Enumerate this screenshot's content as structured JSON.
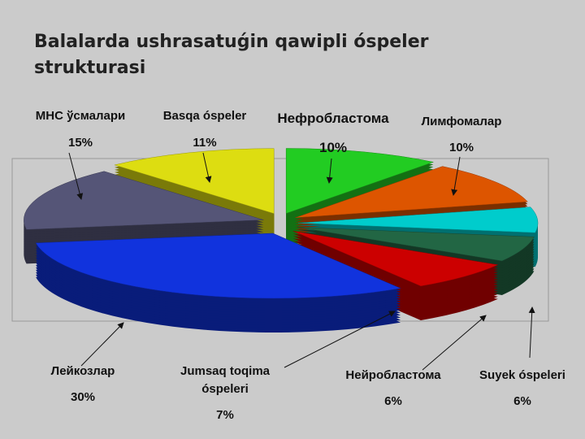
{
  "chart_data": {
    "type": "pie",
    "title": "Balalarda ushrasatuǵin qawipli óspeler strukturasi",
    "categories": [
      "Нефробластома",
      "Лимфомалар",
      "Suyek óspeleri",
      "Нейробластома",
      "Jumsaq toqima óspeleri",
      "Лейкозлар",
      "МНС ўсмалари",
      "Basqa óspeler"
    ],
    "values": [
      10,
      10,
      6,
      6,
      7,
      30,
      15,
      11
    ],
    "value_labels": [
      "10%",
      "10%",
      "6%",
      "6%",
      "7%",
      "30%",
      "15%",
      "11%"
    ],
    "colors": [
      "#22cc22",
      "#dd5500",
      "#00cccc",
      "#226644",
      "#cc0000",
      "#1133dd",
      "#555577",
      "#dddd11"
    ]
  }
}
